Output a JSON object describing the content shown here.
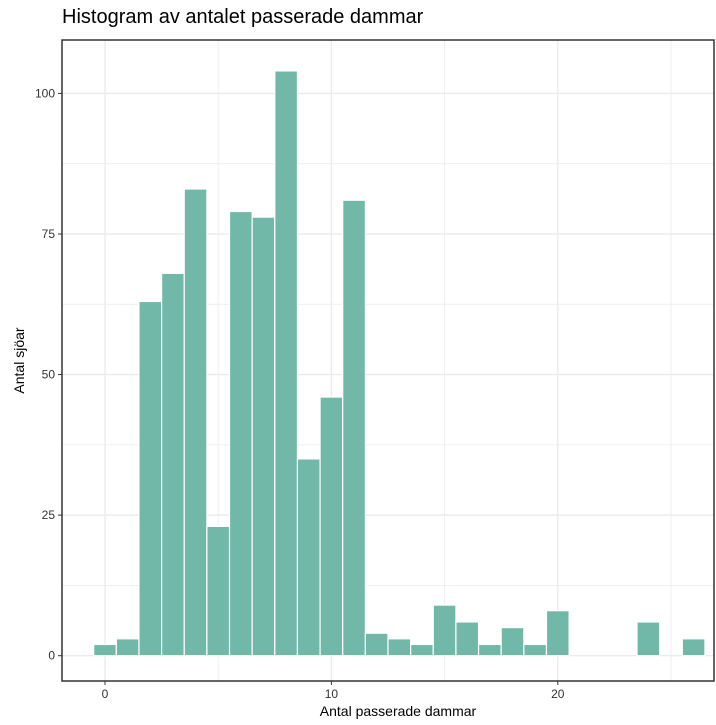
{
  "chart_data": {
    "type": "bar",
    "title": "Histogram av antalet passerade dammar",
    "xlabel": "Antal passerade dammar",
    "ylabel": "Antal sjöar",
    "x": [
      0,
      1,
      2,
      3,
      4,
      5,
      6,
      7,
      8,
      9,
      10,
      11,
      12,
      13,
      14,
      15,
      16,
      17,
      18,
      19,
      20,
      24,
      26
    ],
    "values": [
      2,
      3,
      63,
      68,
      83,
      23,
      79,
      78,
      104,
      35,
      46,
      81,
      4,
      3,
      2,
      9,
      6,
      2,
      5,
      2,
      8,
      6,
      3
    ],
    "bin_width": 1,
    "xlim": [
      -1.9,
      26.9
    ],
    "ylim": [
      -4.5,
      109.5
    ],
    "x_ticks": [
      0,
      10,
      20
    ],
    "x_tick_labels": [
      "0",
      "10",
      "20"
    ],
    "y_ticks": [
      0,
      25,
      50,
      75,
      100
    ],
    "y_tick_labels": [
      "0",
      "25",
      "50",
      "75",
      "100"
    ],
    "grid": true,
    "bar_color": "#71b8a8",
    "bar_edge_color": "#ffffff",
    "panel_border_color": "#333333",
    "grid_color": "#ebebeb"
  }
}
